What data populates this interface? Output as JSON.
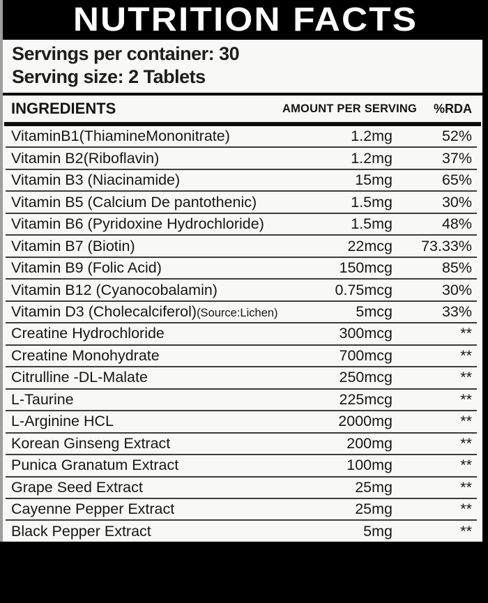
{
  "header": {
    "title": "NUTRITION FACTS"
  },
  "serving_info": {
    "servings_per_container": "Servings per container: 30",
    "serving_size": "Serving size: 2 Tablets"
  },
  "table": {
    "columns": {
      "ingredients": "INGREDIENTS",
      "amount": "AMOUNT PER SERVING",
      "rda": "%RDA"
    },
    "rows": [
      {
        "name": "VitaminB1(ThiamineMononitrate)",
        "note": "",
        "amount": "1.2mg",
        "rda": "52%"
      },
      {
        "name": "Vitamin B2(Riboflavin)",
        "note": "",
        "amount": "1.2mg",
        "rda": "37%"
      },
      {
        "name": "Vitamin B3 (Niacinamide)",
        "note": "",
        "amount": "15mg",
        "rda": "65%"
      },
      {
        "name": "Vitamin B5 (Calcium De pantothenic)",
        "note": "",
        "amount": "1.5mg",
        "rda": "30%"
      },
      {
        "name": "Vitamin B6 (Pyridoxine Hydrochloride)",
        "note": "",
        "amount": "1.5mg",
        "rda": "48%"
      },
      {
        "name": "Vitamin B7 (Biotin)",
        "note": "",
        "amount": "22mcg",
        "rda": "73.33%"
      },
      {
        "name": "Vitamin B9 (Folic Acid)",
        "note": "",
        "amount": "150mcg",
        "rda": "85%"
      },
      {
        "name": "Vitamin B12 (Cyanocobalamin)",
        "note": "",
        "amount": "0.75mcg",
        "rda": "30%"
      },
      {
        "name": "Vitamin D3 (Cholecalciferol)",
        "note": "(Source:Lichen)",
        "amount": "5mcg",
        "rda": "33%"
      },
      {
        "name": "Creatine Hydrochloride",
        "note": "",
        "amount": "300mcg",
        "rda": "**"
      },
      {
        "name": "Creatine Monohydrate",
        "note": "",
        "amount": "700mcg",
        "rda": "**"
      },
      {
        "name": "Citrulline -DL-Malate",
        "note": "",
        "amount": "250mcg",
        "rda": "**"
      },
      {
        "name": "L-Taurine",
        "note": "",
        "amount": "225mcg",
        "rda": "**"
      },
      {
        "name": "L-Arginine HCL",
        "note": "",
        "amount": "2000mg",
        "rda": "**"
      },
      {
        "name": "Korean Ginseng Extract",
        "note": "",
        "amount": "200mg",
        "rda": "**"
      },
      {
        "name": "Punica Granatum Extract",
        "note": "",
        "amount": "100mg",
        "rda": "**"
      },
      {
        "name": "Grape Seed Extract",
        "note": "",
        "amount": "25mg",
        "rda": "**"
      },
      {
        "name": "Cayenne Pepper Extract",
        "note": "",
        "amount": "25mg",
        "rda": "**"
      },
      {
        "name": "Black Pepper Extract",
        "note": "",
        "amount": "5mg",
        "rda": "**"
      }
    ]
  },
  "colors": {
    "background": "#000000",
    "panel": "#f8f8f6",
    "text": "#161616",
    "separator": "#3c3c3c"
  }
}
